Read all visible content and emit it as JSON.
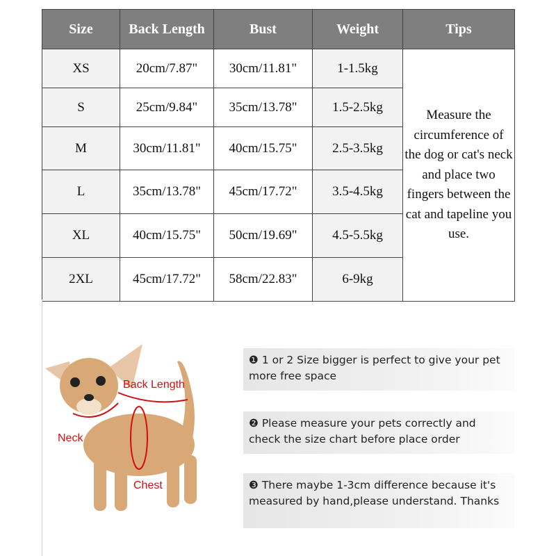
{
  "table": {
    "headers": [
      "Size",
      "Back Length",
      "Bust",
      "Weight",
      "Tips"
    ],
    "rows": [
      [
        "XS",
        "20cm/7.87\"",
        "30cm/11.81\"",
        "1-1.5kg"
      ],
      [
        "S",
        "25cm/9.84\"",
        "35cm/13.78\"",
        "1.5-2.5kg"
      ],
      [
        "M",
        "30cm/11.81\"",
        "40cm/15.75\"",
        "2.5-3.5kg"
      ],
      [
        "L",
        "35cm/13.78\"",
        "45cm/17.72\"",
        "3.5-4.5kg"
      ],
      [
        "XL",
        "40cm/15.75\"",
        "50cm/19.69\"",
        "4.5-5.5kg"
      ],
      [
        "2XL",
        "45cm/17.72\"",
        "58cm/22.83\"",
        "6-9kg"
      ]
    ],
    "tips": "Measure the circumference of the dog or cat's neck and place two fingers between the cat and tapeline you use."
  },
  "diagram": {
    "labels": {
      "back_length": "Back Length",
      "neck": "Neck",
      "chest": "Chest"
    }
  },
  "notes": [
    "❶ 1 or 2 Size bigger is perfect to give your pet more free space",
    "❷ Please measure your pets correctly and check the size chart before place order",
    "❸ There maybe 1-3cm difference because it's measured by hand,please understand. Thanks"
  ]
}
